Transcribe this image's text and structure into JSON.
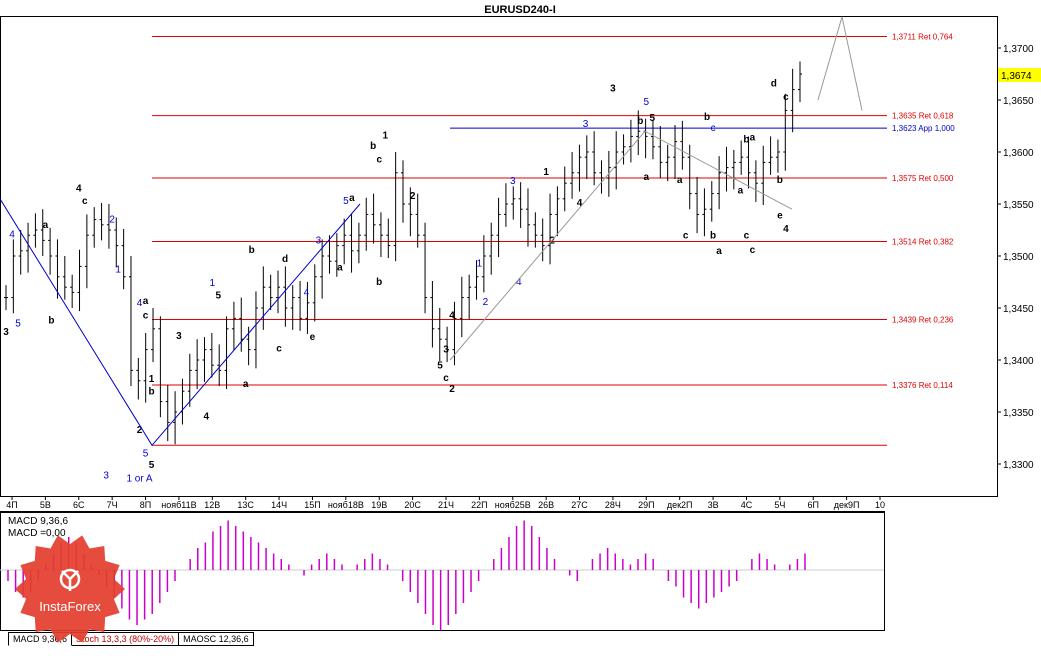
{
  "chart_data": {
    "type": "candlestick",
    "title": "EURUSD240-I",
    "ylim": [
      1.327,
      1.373
    ],
    "y_ticks": [
      "1,3700",
      "1,3650",
      "1,3600",
      "1,3550",
      "1,3500",
      "1,3450",
      "1,3400",
      "1,3350",
      "1,3300"
    ],
    "y_tick_values": [
      1.37,
      1.365,
      1.36,
      1.355,
      1.35,
      1.345,
      1.34,
      1.335,
      1.33
    ],
    "current_price": "1,3674",
    "current_price_value": 1.3674,
    "x_ticks": [
      "4П",
      "5В",
      "6С",
      "7Ч",
      "8П",
      "нояб11В",
      "12В",
      "13С",
      "14Ч",
      "15П",
      "нояб18В",
      "19В",
      "20С",
      "21Ч",
      "22П",
      "нояб25В",
      "26В",
      "27С",
      "28Ч",
      "29П",
      "дек2П",
      "3В",
      "4С",
      "5Ч",
      "6П",
      "дек9П",
      "10"
    ],
    "levels": [
      {
        "label": "1,3711 Ret 0,764",
        "value": 1.3711,
        "color": "#e00000"
      },
      {
        "label": "1,3635 Ret 0,618",
        "value": 1.3635,
        "color": "#e00000"
      },
      {
        "label": "1,3623 App 1,000",
        "value": 1.3623,
        "color": "#0000cc"
      },
      {
        "label": "1,3575 Ret 0,500",
        "value": 1.3575,
        "color": "#e00000"
      },
      {
        "label": "1,3514 Ret 0,382",
        "value": 1.3514,
        "color": "#e00000"
      },
      {
        "label": "1,3439 Ret 0,236",
        "value": 1.3439,
        "color": "#e00000"
      },
      {
        "label": "1,3376 Ret 0,114",
        "value": 1.3376,
        "color": "#e00000"
      },
      {
        "label": "",
        "value": 1.3318,
        "color": "#e00000"
      }
    ],
    "closes": [
      1.346,
      1.35,
      1.3505,
      1.352,
      1.3525,
      1.3515,
      1.35,
      1.348,
      1.347,
      1.3465,
      1.349,
      1.352,
      1.3535,
      1.353,
      1.3525,
      1.351,
      1.348,
      1.339,
      1.338,
      1.341,
      1.343,
      1.336,
      1.334,
      1.335,
      1.337,
      1.339,
      1.34,
      1.341,
      1.3395,
      1.339,
      1.343,
      1.344,
      1.342,
      1.341,
      1.345,
      1.347,
      1.346,
      1.347,
      1.345,
      1.346,
      1.344,
      1.3455,
      1.348,
      1.35,
      1.3495,
      1.351,
      1.352,
      1.3505,
      1.352,
      1.354,
      1.353,
      1.352,
      1.351,
      1.358,
      1.355,
      1.354,
      1.352,
      1.346,
      1.343,
      1.342,
      1.341,
      1.344,
      1.346,
      1.347,
      1.348,
      1.35,
      1.352,
      1.354,
      1.355,
      1.3555,
      1.3545,
      1.353,
      1.352,
      1.351,
      1.354,
      1.3555,
      1.357,
      1.358,
      1.3595,
      1.36,
      1.358,
      1.3575,
      1.3585,
      1.36,
      1.3605,
      1.3615,
      1.362,
      1.3615,
      1.3605,
      1.359,
      1.3595,
      1.361,
      1.3595,
      1.356,
      1.354,
      1.3545,
      1.356,
      1.358,
      1.3585,
      1.359,
      1.3595,
      1.358,
      1.357,
      1.359,
      1.3595,
      1.36,
      1.364,
      1.366,
      1.3675
    ]
  },
  "wave_labels": [
    {
      "text": "4",
      "x_date": "4П",
      "price": 1.3518,
      "color": "blue"
    },
    {
      "text": "5",
      "x_date": "4П",
      "price": 1.3432,
      "color": "blue"
    },
    {
      "text": "3",
      "x_date": "4П",
      "price": 1.3424,
      "color": "black"
    },
    {
      "text": "a",
      "x_date": "5В",
      "price": 1.3527,
      "color": "black"
    },
    {
      "text": "b",
      "x_date": "5В",
      "price": 1.3435,
      "color": "black"
    },
    {
      "text": "4",
      "x_date": "6С",
      "price": 1.3562,
      "color": "black"
    },
    {
      "text": "c",
      "x_date": "6С",
      "price": 1.355,
      "color": "black"
    },
    {
      "text": "2",
      "x_date": "7Ч",
      "price": 1.3532,
      "color": "blue"
    },
    {
      "text": "1",
      "x_date": "7Ч",
      "price": 1.3484,
      "color": "blue"
    },
    {
      "text": "3",
      "x_date": "7Ч",
      "price": 1.3286,
      "color": "blue"
    },
    {
      "text": "a",
      "x_date": "8П",
      "price": 1.3454,
      "color": "black"
    },
    {
      "text": "b",
      "x_date": "8П",
      "price": 1.3367,
      "color": "black"
    },
    {
      "text": "4",
      "x_date": "8П",
      "price": 1.3452,
      "color": "blue"
    },
    {
      "text": "c",
      "x_date": "8П",
      "price": 1.344,
      "color": "black"
    },
    {
      "text": "1",
      "x_date": "8П",
      "price": 1.3379,
      "color": "black"
    },
    {
      "text": "2",
      "x_date": "8П",
      "price": 1.333,
      "color": "black"
    },
    {
      "text": "5",
      "x_date": "8П",
      "price": 1.3307,
      "color": "blue"
    },
    {
      "text": "5",
      "x_date": "8П",
      "price": 1.3296,
      "color": "black"
    },
    {
      "text": "1 or A",
      "x_date": "8П",
      "price": 1.3283,
      "color": "blue"
    },
    {
      "text": "3",
      "x_date": "нояб11В",
      "price": 1.342,
      "color": "black"
    },
    {
      "text": "1",
      "x_date": "12В",
      "price": 1.3471,
      "color": "blue"
    },
    {
      "text": "5",
      "x_date": "12В",
      "price": 1.3459,
      "color": "black"
    },
    {
      "text": "4",
      "x_date": "12В",
      "price": 1.3343,
      "color": "black"
    },
    {
      "text": "a",
      "x_date": "13С",
      "price": 1.3374,
      "color": "black"
    },
    {
      "text": "b",
      "x_date": "13С",
      "price": 1.3503,
      "color": "black"
    },
    {
      "text": "c",
      "x_date": "14Ч",
      "price": 1.3408,
      "color": "black"
    },
    {
      "text": "d",
      "x_date": "14Ч",
      "price": 1.3494,
      "color": "black"
    },
    {
      "text": "e",
      "x_date": "15П",
      "price": 1.3419,
      "color": "black"
    },
    {
      "text": "3",
      "x_date": "15П",
      "price": 1.3512,
      "color": "blue"
    },
    {
      "text": "4",
      "x_date": "15П",
      "price": 1.3462,
      "color": "blue"
    },
    {
      "text": "5",
      "x_date": "нояб18В",
      "price": 1.355,
      "color": "blue"
    },
    {
      "text": "a",
      "x_date": "нояб18В",
      "price": 1.3553,
      "color": "black"
    },
    {
      "text": "a",
      "x_date": "нояб18В",
      "price": 1.3486,
      "color": "black"
    },
    {
      "text": "b",
      "x_date": "19В",
      "price": 1.3472,
      "color": "black"
    },
    {
      "text": "1",
      "x_date": "19В",
      "price": 1.3613,
      "color": "black"
    },
    {
      "text": "b",
      "x_date": "19В",
      "price": 1.3603,
      "color": "black"
    },
    {
      "text": "c",
      "x_date": "19В",
      "price": 1.359,
      "color": "black"
    },
    {
      "text": "2",
      "x_date": "20С",
      "price": 1.3555,
      "color": "black"
    },
    {
      "text": "3",
      "x_date": "21Ч",
      "price": 1.3407,
      "color": "black"
    },
    {
      "text": "4",
      "x_date": "21Ч",
      "price": 1.344,
      "color": "black"
    },
    {
      "text": "5",
      "x_date": "21Ч",
      "price": 1.3392,
      "color": "black"
    },
    {
      "text": "c",
      "x_date": "21Ч",
      "price": 1.338,
      "color": "black"
    },
    {
      "text": "2",
      "x_date": "21Ч",
      "price": 1.3369,
      "color": "black"
    },
    {
      "text": "1",
      "x_date": "22П",
      "price": 1.349,
      "color": "blue"
    },
    {
      "text": "2",
      "x_date": "22П",
      "price": 1.3453,
      "color": "blue"
    },
    {
      "text": "3",
      "x_date": "нояб25В",
      "price": 1.3569,
      "color": "blue"
    },
    {
      "text": "4",
      "x_date": "нояб25В",
      "price": 1.3472,
      "color": "blue"
    },
    {
      "text": "1",
      "x_date": "26В",
      "price": 1.3578,
      "color": "black"
    },
    {
      "text": "2",
      "x_date": "26В",
      "price": 1.3512,
      "color": "black"
    },
    {
      "text": "4",
      "x_date": "27С",
      "price": 1.3548,
      "color": "black"
    },
    {
      "text": "3",
      "x_date": "27С",
      "price": 1.3624,
      "color": "blue"
    },
    {
      "text": "3",
      "x_date": "28Ч",
      "price": 1.3658,
      "color": "black"
    },
    {
      "text": "5",
      "x_date": "29П",
      "price": 1.3645,
      "color": "blue"
    },
    {
      "text": "5",
      "x_date": "29П",
      "price": 1.363,
      "color": "black"
    },
    {
      "text": "b",
      "x_date": "29П",
      "price": 1.3627,
      "color": "black"
    },
    {
      "text": "a",
      "x_date": "29П",
      "price": 1.3573,
      "color": "black"
    },
    {
      "text": "a",
      "x_date": "дек2П",
      "price": 1.357,
      "color": "black"
    },
    {
      "text": "c",
      "x_date": "дек2П",
      "price": 1.3517,
      "color": "black"
    },
    {
      "text": "b",
      "x_date": "3В",
      "price": 1.3517,
      "color": "black"
    },
    {
      "text": "a",
      "x_date": "3В",
      "price": 1.3502,
      "color": "black"
    },
    {
      "text": "b",
      "x_date": "3В",
      "price": 1.3631,
      "color": "black"
    },
    {
      "text": "c",
      "x_date": "3В",
      "price": 1.362,
      "color": "blue"
    },
    {
      "text": "b",
      "x_date": "4С",
      "price": 1.3609,
      "color": "black"
    },
    {
      "text": "a",
      "x_date": "4С",
      "price": 1.3611,
      "color": "black"
    },
    {
      "text": "a",
      "x_date": "4С",
      "price": 1.356,
      "color": "black"
    },
    {
      "text": "c",
      "x_date": "4С",
      "price": 1.3517,
      "color": "black"
    },
    {
      "text": "c",
      "x_date": "4С",
      "price": 1.3503,
      "color": "black"
    },
    {
      "text": "b",
      "x_date": "5Ч",
      "price": 1.357,
      "color": "black"
    },
    {
      "text": "c",
      "x_date": "5Ч",
      "price": 1.365,
      "color": "black"
    },
    {
      "text": "d",
      "x_date": "5Ч",
      "price": 1.3663,
      "color": "black"
    },
    {
      "text": "e",
      "x_date": "5Ч",
      "price": 1.3536,
      "color": "black"
    },
    {
      "text": "4",
      "x_date": "5Ч",
      "price": 1.3523,
      "color": "black"
    }
  ],
  "macd": {
    "label1": "MACD 9,36,6",
    "label2": "MACD =0,00",
    "values": [
      -0.2,
      -0.4,
      -0.5,
      -0.4,
      -0.2,
      0.1,
      0.3,
      0.5,
      0.6,
      0.5,
      0.3,
      0.1,
      -0.1,
      -0.3,
      -0.5,
      -0.7,
      -0.9,
      -1.0,
      -0.9,
      -0.8,
      -0.6,
      -0.4,
      -0.2,
      0,
      0.2,
      0.4,
      0.5,
      0.7,
      0.8,
      0.9,
      0.8,
      0.7,
      0.6,
      0.5,
      0.4,
      0.3,
      0.2,
      0.1,
      0,
      -0.1,
      0.1,
      0.2,
      0.3,
      0.2,
      0.1,
      0,
      0.1,
      0.2,
      0.3,
      0.2,
      0.1,
      0,
      -0.2,
      -0.4,
      -0.6,
      -0.8,
      -1.0,
      -1.1,
      -1.0,
      -0.8,
      -0.6,
      -0.4,
      -0.2,
      0,
      0.2,
      0.4,
      0.6,
      0.8,
      0.9,
      0.8,
      0.6,
      0.4,
      0.2,
      0,
      -0.1,
      -0.2,
      0,
      0.2,
      0.3,
      0.4,
      0.3,
      0.2,
      0.1,
      0.2,
      0.3,
      0.2,
      0,
      -0.2,
      -0.3,
      -0.5,
      -0.6,
      -0.7,
      -0.6,
      -0.5,
      -0.4,
      -0.3,
      -0.2,
      0,
      0.2,
      0.3,
      0.2,
      0.1,
      0,
      0.1,
      0.2,
      0.3
    ]
  },
  "tabs": [
    "MACD 9,36,6",
    "Stoch 13,3,3 (80%-20%)",
    "MAOSC 12,36,6"
  ],
  "logo_text": "InstaForex"
}
